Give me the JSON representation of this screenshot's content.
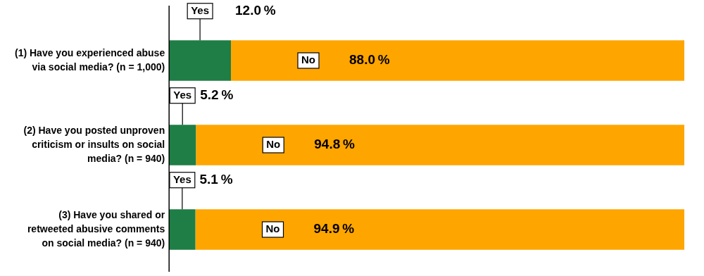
{
  "chart_data": {
    "type": "bar",
    "orientation": "horizontal",
    "stacked": true,
    "categories": [
      "(1) Have you experienced abuse\nvia social media? (n = 1,000)",
      "(2) Have you posted unproven\ncriticism or insults on social\nmedia? (n = 940)",
      "(3) Have you shared or\nretweeted abusive comments\non social media? (n = 940)"
    ],
    "series": [
      {
        "name": "Yes",
        "color": "#1e7e45",
        "values": [
          12.0,
          5.2,
          5.1
        ],
        "value_labels": [
          "12.0 %",
          "5.2 %",
          "5.1 %"
        ]
      },
      {
        "name": "No",
        "color": "#FFA500",
        "values": [
          88.0,
          94.8,
          94.9
        ],
        "value_labels": [
          "88.0 %",
          "94.8 %",
          "94.9 %"
        ]
      }
    ],
    "xlim": [
      -32,
      103
    ],
    "data_labels": true,
    "tick_labels": false,
    "grid": false
  }
}
